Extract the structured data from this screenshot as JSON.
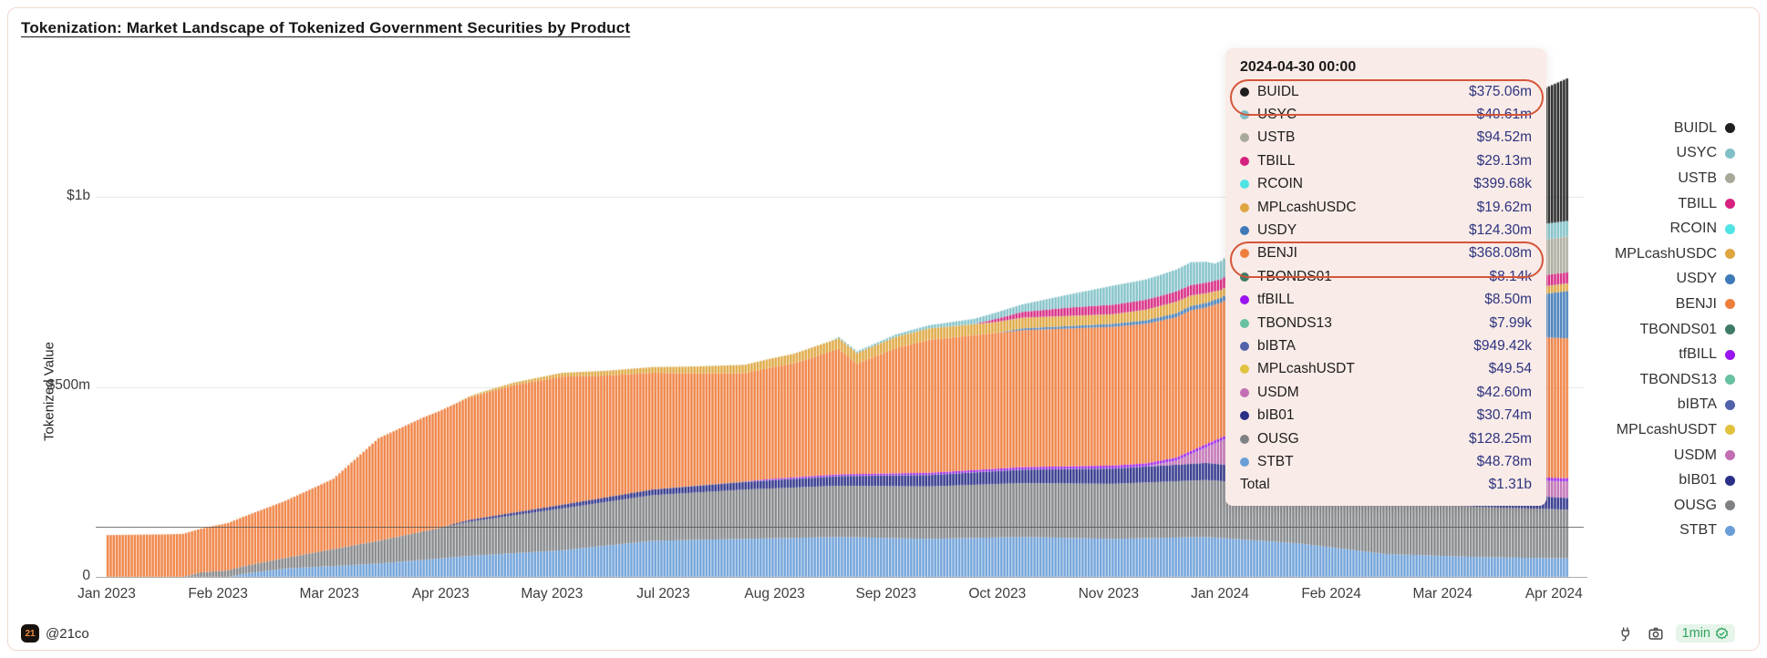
{
  "page": {
    "title": "Tokenization: Market Landscape of Tokenized Government Securities by Product"
  },
  "y_axis": {
    "title": "Tokenized Value",
    "ticks": [
      {
        "label": "$1b",
        "value_m": 1000
      },
      {
        "label": "$500m",
        "value_m": 500
      },
      {
        "label": "0",
        "value_m": 0
      }
    ]
  },
  "x_axis": {
    "labels": [
      "Jan 2023",
      "Feb 2023",
      "Mar 2023",
      "Apr 2023",
      "May 2023",
      "Jul 2023",
      "Aug 2023",
      "Sep 2023",
      "Oct 2023",
      "Nov 2023",
      "Jan 2024",
      "Feb 2024",
      "Mar 2024",
      "Apr 2024"
    ]
  },
  "tooltip": {
    "date": "2024-04-30 00:00",
    "rows": [
      {
        "label": "BUIDL",
        "value": "$375.06m",
        "color": "#1f1f1f",
        "circled": true
      },
      {
        "label": "USYC",
        "value": "$40.61m",
        "color": "#7fc0c7",
        "circled": false
      },
      {
        "label": "USTB",
        "value": "$94.52m",
        "color": "#a9a99b",
        "circled": false
      },
      {
        "label": "TBILL",
        "value": "$29.13m",
        "color": "#d6217f",
        "circled": false
      },
      {
        "label": "RCOIN",
        "value": "$399.68k",
        "color": "#4fe3e3",
        "circled": false
      },
      {
        "label": "MPLcashUSDC",
        "value": "$19.62m",
        "color": "#dea63e",
        "circled": false
      },
      {
        "label": "USDY",
        "value": "$124.30m",
        "color": "#3f7ab8",
        "circled": false
      },
      {
        "label": "BENJI",
        "value": "$368.08m",
        "color": "#ef7e3d",
        "circled": true
      },
      {
        "label": "TBONDS01",
        "value": "$8.14k",
        "color": "#3e7c69",
        "circled": false
      },
      {
        "label": "tfBILL",
        "value": "$8.50m",
        "color": "#9a15ef",
        "circled": false
      },
      {
        "label": "TBONDS13",
        "value": "$7.99k",
        "color": "#68c1a1",
        "circled": false
      },
      {
        "label": "bIBTA",
        "value": "$949.42k",
        "color": "#5162ab",
        "circled": false
      },
      {
        "label": "MPLcashUSDT",
        "value": "$49.54",
        "color": "#e1c23f",
        "circled": false
      },
      {
        "label": "USDM",
        "value": "$42.60m",
        "color": "#c16eb3",
        "circled": false
      },
      {
        "label": "bIB01",
        "value": "$30.74m",
        "color": "#2a2f87",
        "circled": false
      },
      {
        "label": "OUSG",
        "value": "$128.25m",
        "color": "#7f8285",
        "circled": false
      },
      {
        "label": "STBT",
        "value": "$48.78m",
        "color": "#6a9ed8",
        "circled": false
      }
    ],
    "total_label": "Total",
    "total_value": "$1.31b"
  },
  "legend": {
    "items": [
      {
        "label": "BUIDL",
        "color": "#1f1f1f"
      },
      {
        "label": "USYC",
        "color": "#7fc0c7"
      },
      {
        "label": "USTB",
        "color": "#a9a99b"
      },
      {
        "label": "TBILL",
        "color": "#d6217f"
      },
      {
        "label": "RCOIN",
        "color": "#4fe3e3"
      },
      {
        "label": "MPLcashUSDC",
        "color": "#dea63e"
      },
      {
        "label": "USDY",
        "color": "#3f7ab8"
      },
      {
        "label": "BENJI",
        "color": "#ef7e3d"
      },
      {
        "label": "TBONDS01",
        "color": "#3e7c69"
      },
      {
        "label": "tfBILL",
        "color": "#9a15ef"
      },
      {
        "label": "TBONDS13",
        "color": "#68c1a1"
      },
      {
        "label": "bIBTA",
        "color": "#5162ab"
      },
      {
        "label": "MPLcashUSDT",
        "color": "#e1c23f"
      },
      {
        "label": "USDM",
        "color": "#c16eb3"
      },
      {
        "label": "bIB01",
        "color": "#2a2f87"
      },
      {
        "label": "OUSG",
        "color": "#7f8285"
      },
      {
        "label": "STBT",
        "color": "#6a9ed8"
      }
    ]
  },
  "footer": {
    "logo_text": "21",
    "handle": "@21co",
    "refresh_badge": "1min",
    "icons": [
      "plug-icon",
      "camera-icon",
      "verified-check-icon"
    ]
  },
  "chart_data": {
    "type": "bar",
    "stacked": true,
    "title": "Tokenization: Market Landscape of Tokenized Government Securities by Product",
    "ylabel": "Tokenized Value",
    "y_unit": "USD millions",
    "ylim_m": [
      0,
      1310
    ],
    "grid_values_m": [
      500,
      1000
    ],
    "crosshair_line_value_m": 132,
    "x_start": "2023-01-01",
    "x_end": "2024-04-30",
    "days": 486,
    "x_tick_day_step": 37,
    "legend_position": "right",
    "hover_total": "$1.31b",
    "stack_order_bottom_to_top": [
      "STBT",
      "OUSG",
      "bIB01",
      "USDM",
      "MPLcashUSDT",
      "bIBTA",
      "TBONDS13",
      "tfBILL",
      "TBONDS01",
      "BENJI",
      "USDY",
      "MPLcashUSDC",
      "RCOIN",
      "TBILL",
      "USTB",
      "USYC",
      "BUIDL"
    ],
    "series": [
      {
        "name": "STBT",
        "color": "#6a9ed8",
        "keyframes": [
          [
            0,
            0
          ],
          [
            40,
            0
          ],
          [
            45,
            8
          ],
          [
            59,
            22
          ],
          [
            90,
            35
          ],
          [
            120,
            55
          ],
          [
            151,
            70
          ],
          [
            181,
            95
          ],
          [
            212,
            100
          ],
          [
            243,
            105
          ],
          [
            273,
            100
          ],
          [
            304,
            105
          ],
          [
            334,
            100
          ],
          [
            365,
            105
          ],
          [
            396,
            88
          ],
          [
            425,
            60
          ],
          [
            456,
            52
          ],
          [
            485,
            48.78
          ]
        ]
      },
      {
        "name": "OUSG",
        "color": "#7f8285",
        "keyframes": [
          [
            0,
            0
          ],
          [
            25,
            0
          ],
          [
            31,
            12
          ],
          [
            59,
            28
          ],
          [
            90,
            60
          ],
          [
            120,
            90
          ],
          [
            151,
            110
          ],
          [
            181,
            120
          ],
          [
            212,
            130
          ],
          [
            243,
            135
          ],
          [
            273,
            138
          ],
          [
            304,
            142
          ],
          [
            334,
            145
          ],
          [
            365,
            150
          ],
          [
            396,
            150
          ],
          [
            425,
            140
          ],
          [
            456,
            132
          ],
          [
            485,
            128.25
          ]
        ]
      },
      {
        "name": "bIB01",
        "color": "#2a2f87",
        "keyframes": [
          [
            0,
            0
          ],
          [
            110,
            0
          ],
          [
            120,
            5
          ],
          [
            151,
            10
          ],
          [
            181,
            15
          ],
          [
            212,
            20
          ],
          [
            243,
            25
          ],
          [
            273,
            30
          ],
          [
            304,
            35
          ],
          [
            334,
            40
          ],
          [
            365,
            45
          ],
          [
            380,
            42
          ],
          [
            396,
            40
          ],
          [
            415,
            55
          ],
          [
            425,
            55
          ],
          [
            445,
            40
          ],
          [
            456,
            38
          ],
          [
            485,
            30.74
          ]
        ]
      },
      {
        "name": "USDM",
        "color": "#c16eb3",
        "keyframes": [
          [
            0,
            0
          ],
          [
            345,
            0
          ],
          [
            355,
            10
          ],
          [
            365,
            40
          ],
          [
            378,
            95
          ],
          [
            385,
            112
          ],
          [
            392,
            105
          ],
          [
            400,
            90
          ],
          [
            415,
            60
          ],
          [
            425,
            50
          ],
          [
            440,
            38
          ],
          [
            456,
            35
          ],
          [
            485,
            42.6
          ]
        ]
      },
      {
        "name": "MPLcashUSDT",
        "color": "#e1c23f",
        "keyframes": [
          [
            0,
            0
          ],
          [
            485,
            5e-05
          ]
        ]
      },
      {
        "name": "bIBTA",
        "color": "#5162ab",
        "keyframes": [
          [
            0,
            0
          ],
          [
            180,
            0
          ],
          [
            200,
            0.9
          ],
          [
            485,
            0.95
          ]
        ]
      },
      {
        "name": "TBONDS13",
        "color": "#68c1a1",
        "keyframes": [
          [
            0,
            0
          ],
          [
            485,
            0.008
          ]
        ]
      },
      {
        "name": "tfBILL",
        "color": "#9a15ef",
        "keyframes": [
          [
            0,
            0
          ],
          [
            210,
            0
          ],
          [
            220,
            3
          ],
          [
            243,
            4
          ],
          [
            273,
            5
          ],
          [
            304,
            6
          ],
          [
            334,
            7
          ],
          [
            365,
            8
          ],
          [
            425,
            8.5
          ],
          [
            485,
            8.5
          ]
        ]
      },
      {
        "name": "TBONDS01",
        "color": "#3e7c69",
        "keyframes": [
          [
            0,
            0
          ],
          [
            485,
            0.008
          ]
        ]
      },
      {
        "name": "BENJI",
        "color": "#ef7e3d",
        "keyframes": [
          [
            0,
            110
          ],
          [
            20,
            112
          ],
          [
            31,
            115
          ],
          [
            45,
            130
          ],
          [
            59,
            150
          ],
          [
            75,
            185
          ],
          [
            90,
            270
          ],
          [
            105,
            300
          ],
          [
            120,
            322
          ],
          [
            135,
            335
          ],
          [
            151,
            337
          ],
          [
            166,
            320
          ],
          [
            181,
            307
          ],
          [
            196,
            295
          ],
          [
            212,
            285
          ],
          [
            228,
            300
          ],
          [
            243,
            330
          ],
          [
            249,
            290
          ],
          [
            262,
            330
          ],
          [
            273,
            350
          ],
          [
            304,
            360
          ],
          [
            334,
            365
          ],
          [
            360,
            370
          ],
          [
            365,
            360
          ],
          [
            370,
            355
          ],
          [
            380,
            368
          ],
          [
            396,
            368
          ],
          [
            425,
            370
          ],
          [
            456,
            370
          ],
          [
            485,
            368.08
          ]
        ]
      },
      {
        "name": "USDY",
        "color": "#3f7ab8",
        "keyframes": [
          [
            0,
            0
          ],
          [
            295,
            0
          ],
          [
            304,
            5
          ],
          [
            334,
            8
          ],
          [
            365,
            12
          ],
          [
            396,
            20
          ],
          [
            425,
            40
          ],
          [
            445,
            70
          ],
          [
            456,
            85
          ],
          [
            470,
            105
          ],
          [
            485,
            124.3
          ]
        ]
      },
      {
        "name": "MPLcashUSDC",
        "color": "#dea63e",
        "keyframes": [
          [
            0,
            0
          ],
          [
            115,
            0
          ],
          [
            125,
            5
          ],
          [
            151,
            10
          ],
          [
            181,
            15
          ],
          [
            212,
            22
          ],
          [
            243,
            28
          ],
          [
            273,
            30
          ],
          [
            304,
            28
          ],
          [
            334,
            25
          ],
          [
            355,
            30
          ],
          [
            365,
            25
          ],
          [
            370,
            20
          ],
          [
            396,
            20
          ],
          [
            425,
            20
          ],
          [
            456,
            20
          ],
          [
            485,
            19.62
          ]
        ]
      },
      {
        "name": "RCOIN",
        "color": "#4fe3e3",
        "keyframes": [
          [
            0,
            0
          ],
          [
            485,
            0.4
          ]
        ]
      },
      {
        "name": "TBILL",
        "color": "#d6217f",
        "keyframes": [
          [
            0,
            0
          ],
          [
            288,
            0
          ],
          [
            295,
            8
          ],
          [
            304,
            15
          ],
          [
            320,
            22
          ],
          [
            334,
            25
          ],
          [
            365,
            28
          ],
          [
            396,
            30
          ],
          [
            425,
            30
          ],
          [
            456,
            29
          ],
          [
            485,
            29.13
          ]
        ]
      },
      {
        "name": "USTB",
        "color": "#a9a99b",
        "keyframes": [
          [
            0,
            0
          ],
          [
            415,
            0
          ],
          [
            420,
            30
          ],
          [
            425,
            55
          ],
          [
            435,
            75
          ],
          [
            456,
            90
          ],
          [
            485,
            94.52
          ]
        ]
      },
      {
        "name": "USYC",
        "color": "#7fc0c7",
        "keyframes": [
          [
            0,
            0
          ],
          [
            240,
            0
          ],
          [
            243,
            3
          ],
          [
            273,
            8
          ],
          [
            304,
            20
          ],
          [
            320,
            35
          ],
          [
            334,
            50
          ],
          [
            350,
            55
          ],
          [
            360,
            60
          ],
          [
            365,
            55
          ],
          [
            368,
            45
          ],
          [
            375,
            55
          ],
          [
            385,
            70
          ],
          [
            396,
            75
          ],
          [
            405,
            85
          ],
          [
            415,
            80
          ],
          [
            425,
            65
          ],
          [
            440,
            50
          ],
          [
            456,
            45
          ],
          [
            485,
            40.61
          ]
        ]
      },
      {
        "name": "BUIDL",
        "color": "#1f1f1f",
        "keyframes": [
          [
            0,
            0
          ],
          [
            443,
            0
          ],
          [
            444,
            40
          ],
          [
            447,
            180
          ],
          [
            450,
            245
          ],
          [
            456,
            280
          ],
          [
            465,
            320
          ],
          [
            475,
            350
          ],
          [
            485,
            375.06
          ]
        ]
      }
    ]
  }
}
